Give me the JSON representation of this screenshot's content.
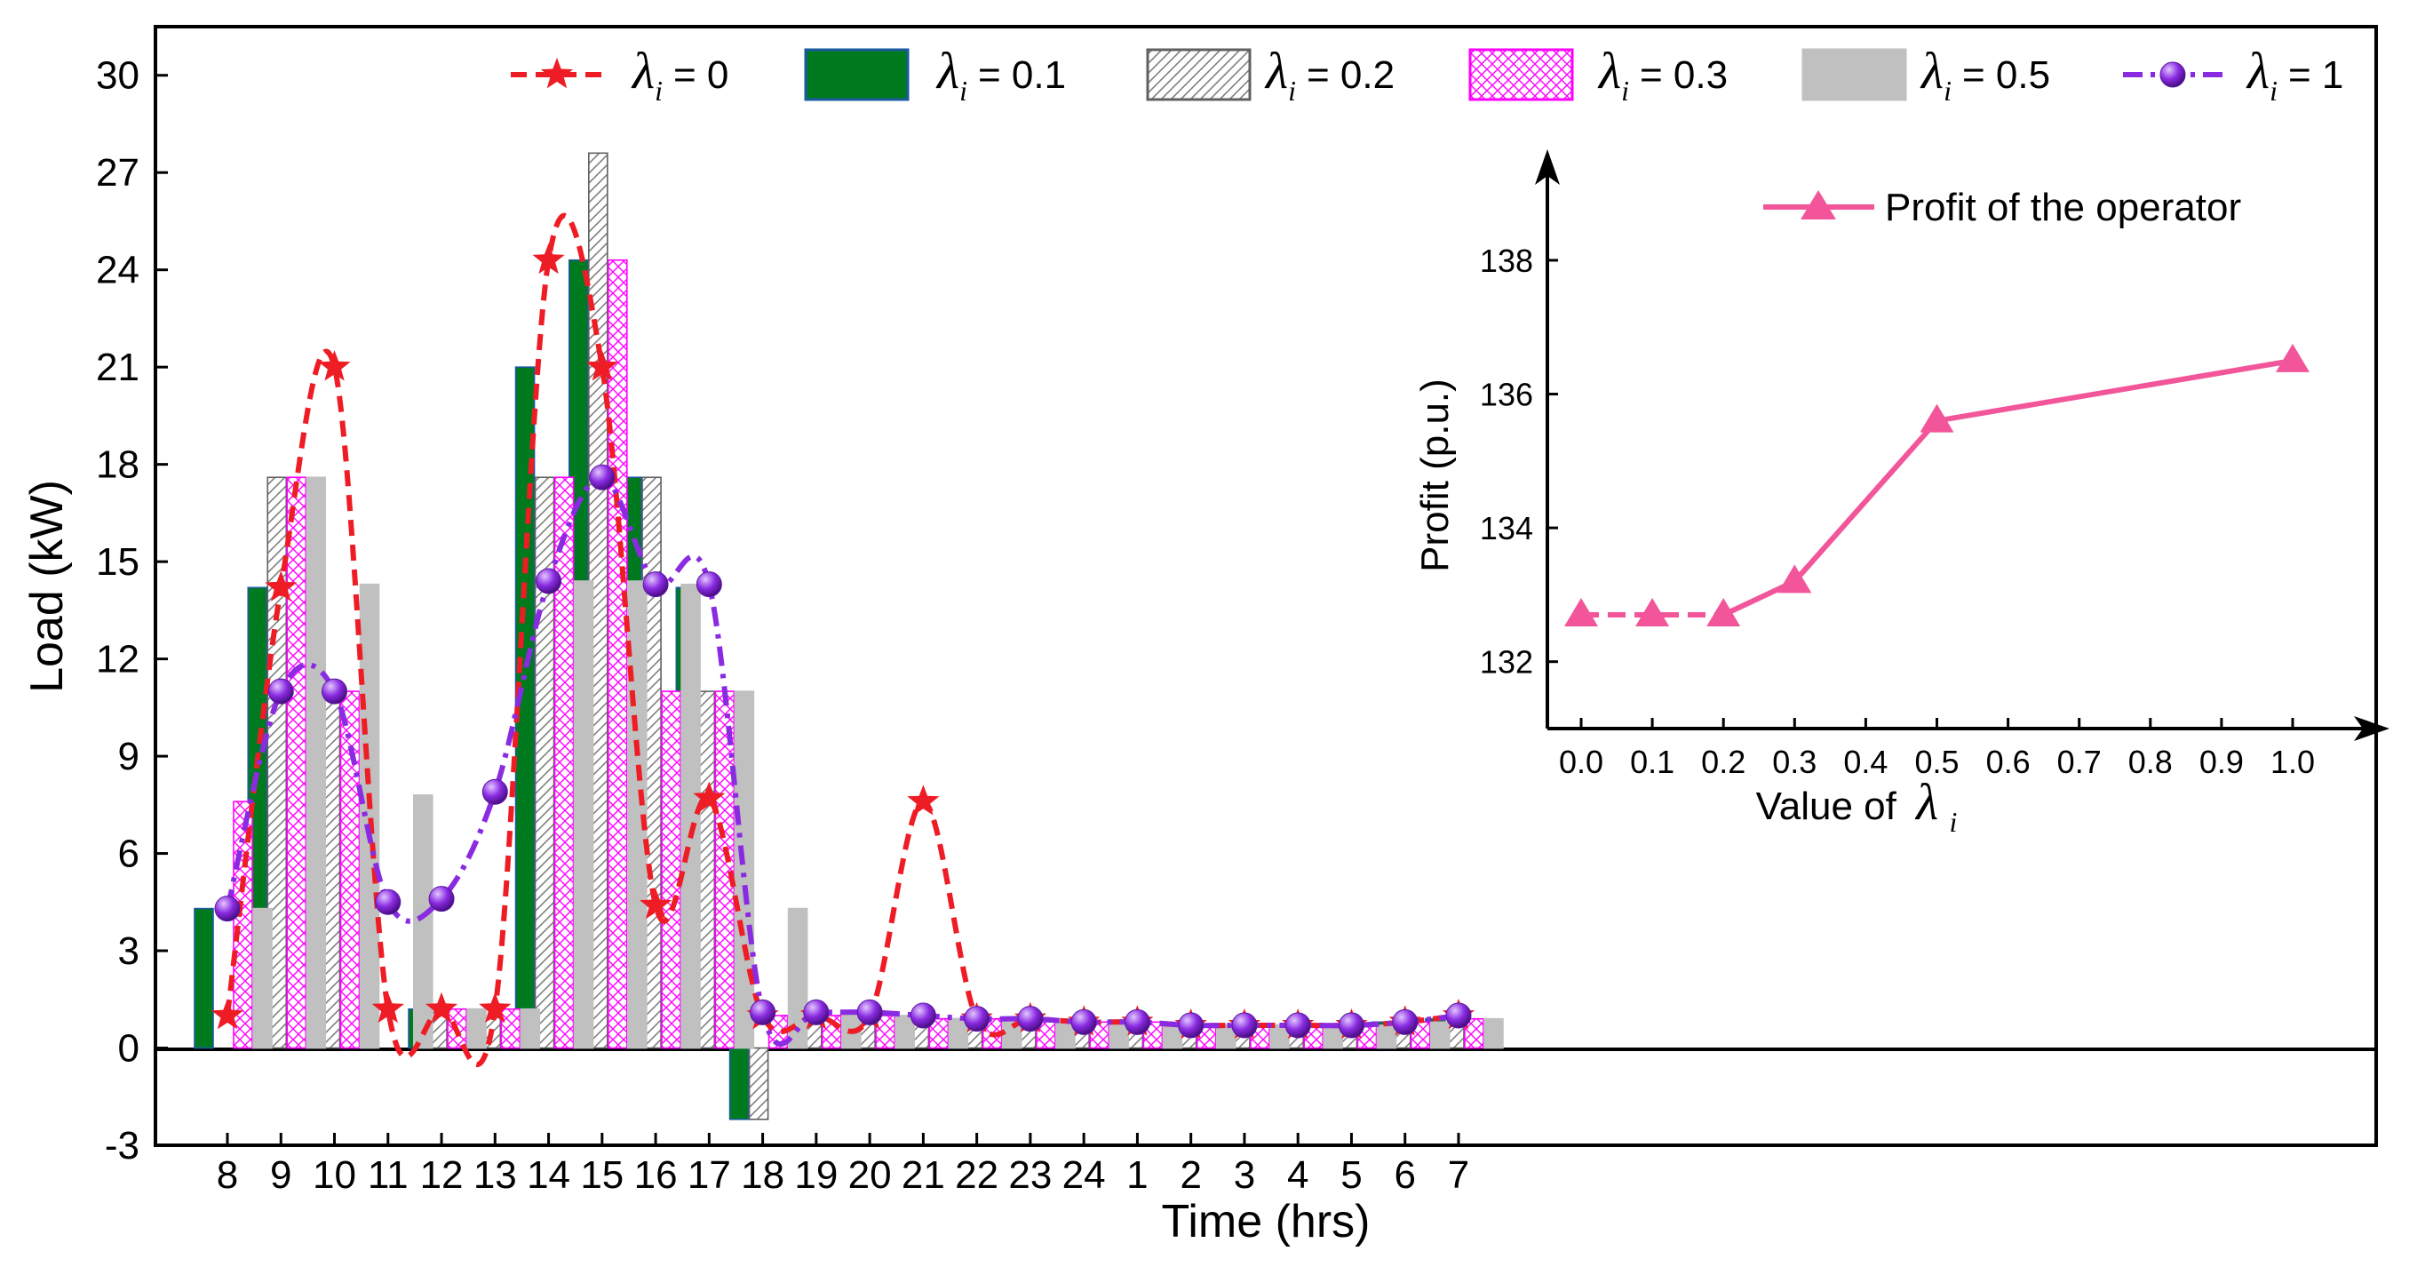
{
  "chart_data": [
    {
      "type": "bar",
      "xlabel": "Time (hrs)",
      "ylabel": "Load (kW)",
      "ylim": [
        -3,
        31.5
      ],
      "yticks": [
        "30",
        "27",
        "24",
        "21",
        "18",
        "15",
        "12",
        "9",
        "6",
        "3",
        "0",
        "-3"
      ],
      "ytick_values": [
        30,
        27,
        24,
        21,
        18,
        15,
        12,
        9,
        6,
        3,
        0,
        -3
      ],
      "categories": [
        "8",
        "9",
        "10",
        "11",
        "12",
        "13",
        "14",
        "15",
        "16",
        "17",
        "18",
        "19",
        "20",
        "21",
        "22",
        "23",
        "24",
        "1",
        "2",
        "3",
        "4",
        "5",
        "6",
        "7"
      ],
      "legend_symbol": "λ",
      "legend_subscript": "i",
      "legend_position": "top",
      "series": [
        {
          "name": "λi = 0",
          "label_value": "= 0",
          "kind": "line",
          "color": "#ee1c25",
          "marker": "star",
          "values": [
            1.0,
            14.2,
            21.0,
            1.2,
            1.2,
            1.2,
            24.3,
            21.0,
            4.4,
            7.7,
            1.0,
            1.0,
            1.0,
            7.6,
            0.9,
            0.9,
            0.8,
            0.8,
            0.7,
            0.7,
            0.7,
            0.7,
            0.8,
            1.0
          ]
        },
        {
          "name": "λi = 0.1",
          "label_value": "= 0.1",
          "kind": "bar",
          "color": "#007a1f",
          "values": [
            4.3,
            14.2,
            7.7,
            1.2,
            1.2,
            1.2,
            21.0,
            24.3,
            17.6,
            14.2,
            -2.2,
            1.0,
            1.0,
            0.9,
            0.9,
            0.9,
            0.8,
            0.8,
            0.7,
            0.7,
            0.7,
            0.7,
            0.8,
            0.9
          ]
        },
        {
          "name": "λi = 0.2",
          "label_value": "= 0.2",
          "kind": "bar",
          "color": "#808080",
          "pattern": "diagonal",
          "values": [
            0.0,
            17.6,
            11.0,
            0.0,
            1.2,
            1.2,
            17.6,
            27.6,
            17.6,
            11.0,
            -2.2,
            1.0,
            1.0,
            0.9,
            0.9,
            0.9,
            0.8,
            0.8,
            0.7,
            0.7,
            0.7,
            0.7,
            0.8,
            0.9
          ]
        },
        {
          "name": "λi = 0.3",
          "label_value": "= 0.3",
          "kind": "bar",
          "color": "#ff00ff",
          "pattern": "crosshatch",
          "values": [
            7.6,
            17.6,
            11.0,
            0.0,
            1.2,
            1.2,
            17.6,
            24.3,
            11.0,
            11.0,
            1.0,
            1.0,
            1.0,
            0.9,
            0.9,
            0.9,
            0.8,
            0.8,
            0.7,
            0.7,
            0.7,
            0.7,
            0.8,
            0.9
          ]
        },
        {
          "name": "λi = 0.5",
          "label_value": "= 0.5",
          "kind": "bar",
          "color": "#c0c0c0",
          "values": [
            4.3,
            17.6,
            14.3,
            7.8,
            1.2,
            1.2,
            14.4,
            14.4,
            14.3,
            11.0,
            4.3,
            1.0,
            1.0,
            0.9,
            0.9,
            0.9,
            0.8,
            0.8,
            0.7,
            0.7,
            0.7,
            0.7,
            0.8,
            0.9
          ]
        },
        {
          "name": "λi = 1",
          "label_value": "= 1",
          "kind": "line",
          "color": "#8a2be2",
          "marker": "sphere",
          "values": [
            4.3,
            11.0,
            11.0,
            4.5,
            4.6,
            7.9,
            14.4,
            17.6,
            14.3,
            14.3,
            1.1,
            1.1,
            1.1,
            1.0,
            0.9,
            0.9,
            0.8,
            0.8,
            0.7,
            0.7,
            0.7,
            0.7,
            0.8,
            1.0
          ]
        }
      ]
    },
    {
      "type": "line",
      "xlabel_prefix": "Value of",
      "xlabel_symbol": "λ",
      "xlabel_subscript": "i",
      "ylabel": "Profit (p.u.)",
      "xlim": [
        -0.1,
        1.1
      ],
      "ylim": [
        131,
        139.5
      ],
      "xticks": [
        "0.0",
        "0.1",
        "0.2",
        "0.3",
        "0.4",
        "0.5",
        "0.6",
        "0.7",
        "0.8",
        "0.9",
        "1.0"
      ],
      "xtick_values": [
        0,
        0.1,
        0.2,
        0.3,
        0.4,
        0.5,
        0.6,
        0.7,
        0.8,
        0.9,
        1.0
      ],
      "yticks": [
        "138",
        "136",
        "134",
        "132"
      ],
      "ytick_values": [
        138,
        136,
        134,
        132
      ],
      "legend": "Profit of the operator",
      "color": "#f2559a",
      "x": [
        0,
        0.1,
        0.2,
        0.3,
        0.5,
        1.0
      ],
      "y": [
        132.7,
        132.7,
        132.7,
        133.2,
        135.6,
        136.5
      ]
    }
  ]
}
